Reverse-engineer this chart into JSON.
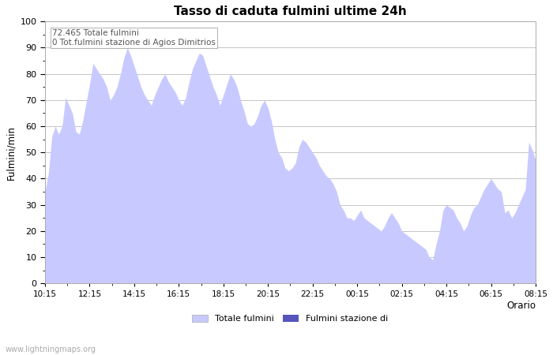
{
  "title": "Tasso di caduta fulmini ultime 24h",
  "xlabel": "Orario",
  "ylabel": "Fulmini/min",
  "annotation_line1": "72.465 Totale fulmini",
  "annotation_line2": "0 Tot.fulmini stazione di Agios Dimitrios",
  "x_labels": [
    "10:15",
    "12:15",
    "14:15",
    "16:15",
    "18:15",
    "20:15",
    "22:15",
    "00:15",
    "02:15",
    "04:15",
    "06:15",
    "08:15"
  ],
  "ylim": [
    0,
    100
  ],
  "fill_color": "#c8caff",
  "fill_color2": "#5555bb",
  "legend_label1": "Totale fulmini",
  "legend_label2": "Fulmini stazione di",
  "watermark": "www.lightningmaps.org",
  "y_values": [
    35,
    42,
    56,
    60,
    57,
    60,
    71,
    68,
    65,
    58,
    57,
    62,
    69,
    76,
    84,
    82,
    80,
    78,
    75,
    70,
    72,
    75,
    80,
    86,
    90,
    87,
    83,
    79,
    75,
    72,
    70,
    68,
    72,
    75,
    78,
    80,
    77,
    75,
    73,
    70,
    68,
    71,
    77,
    82,
    85,
    88,
    87,
    83,
    79,
    75,
    72,
    68,
    72,
    76,
    80,
    78,
    75,
    70,
    66,
    61,
    60,
    61,
    64,
    68,
    70,
    67,
    62,
    55,
    50,
    48,
    44,
    43,
    44,
    46,
    52,
    55,
    54,
    52,
    50,
    48,
    45,
    43,
    41,
    40,
    38,
    35,
    30,
    28,
    25,
    25,
    24,
    26,
    28,
    25,
    24,
    23,
    22,
    21,
    20,
    22,
    25,
    27,
    25,
    23,
    20,
    19,
    18,
    17,
    16,
    15,
    14,
    13,
    10,
    9,
    15,
    20,
    28,
    30,
    29,
    28,
    25,
    23,
    20,
    22,
    26,
    29,
    30,
    33,
    36,
    38,
    40,
    38,
    36,
    35,
    27,
    28,
    25,
    27,
    30,
    33,
    36,
    54,
    51,
    47
  ]
}
